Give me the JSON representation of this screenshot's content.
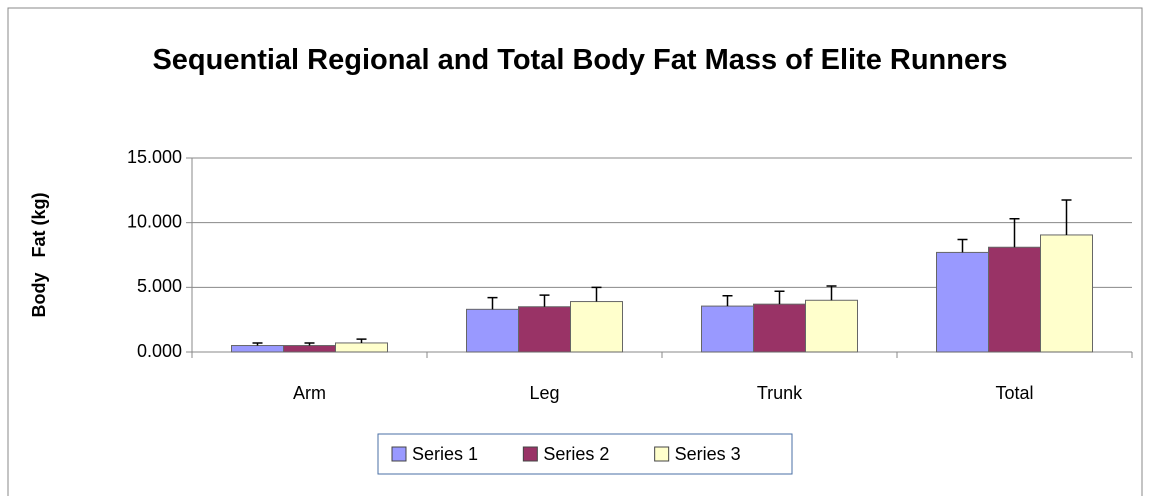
{
  "chart_data": {
    "type": "bar",
    "title": "Sequential Regional and Total Body Fat Mass of Elite Runners",
    "y_label": "Body   Fat (kg)",
    "categories": [
      "Arm",
      "Leg",
      "Trunk",
      "Total"
    ],
    "series": [
      {
        "name": "Series 1",
        "color": "#9999ff",
        "values": [
          0.5,
          3.3,
          3.55,
          7.7
        ],
        "errors": [
          0.2,
          0.9,
          0.8,
          1.0
        ]
      },
      {
        "name": "Series 2",
        "color": "#993366",
        "values": [
          0.5,
          3.5,
          3.7,
          8.1
        ],
        "errors": [
          0.2,
          0.9,
          1.0,
          2.2
        ]
      },
      {
        "name": "Series 3",
        "color": "#ffffcc",
        "values": [
          0.7,
          3.9,
          4.0,
          9.05
        ],
        "errors": [
          0.3,
          1.1,
          1.1,
          2.7
        ]
      }
    ],
    "ylim": [
      0,
      15
    ],
    "yticks": [
      {
        "value": 0,
        "label": "0.000"
      },
      {
        "value": 5,
        "label": "5.000"
      },
      {
        "value": 10,
        "label": "10.000"
      },
      {
        "value": 15,
        "label": "15.000"
      }
    ],
    "grid": true,
    "legend": "bottom"
  }
}
